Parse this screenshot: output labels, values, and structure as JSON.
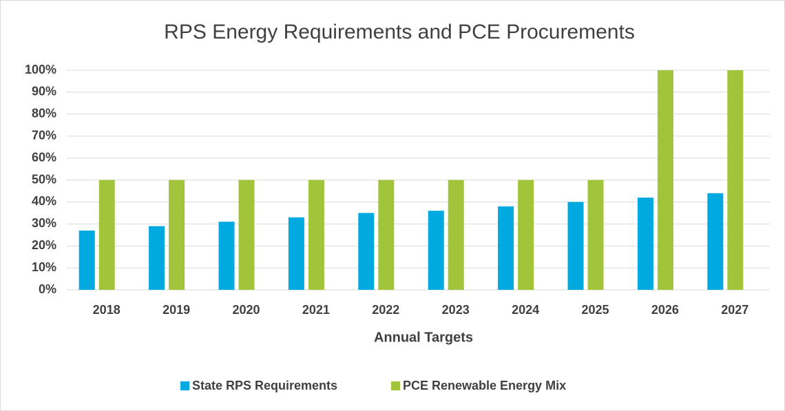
{
  "chart_data": {
    "type": "bar",
    "title": "RPS Energy Requirements and PCE Procurements",
    "x_label": "Annual Targets",
    "categories": [
      "2018",
      "2019",
      "2020",
      "2021",
      "2022",
      "2023",
      "2024",
      "2025",
      "2026",
      "2027"
    ],
    "series": [
      {
        "name": "State RPS Requirements",
        "color": "#00a9e0",
        "values": [
          27,
          29,
          31,
          33,
          35,
          36,
          38,
          40,
          42,
          44
        ]
      },
      {
        "name": "PCE Renewable Energy Mix",
        "color": "#a1c43a",
        "values": [
          50,
          50,
          50,
          50,
          50,
          50,
          50,
          50,
          100,
          100
        ]
      }
    ],
    "ylim": [
      0,
      100
    ],
    "yticks": [
      {
        "value": 0,
        "label": "0%"
      },
      {
        "value": 10,
        "label": "10%"
      },
      {
        "value": 20,
        "label": "20%"
      },
      {
        "value": 30,
        "label": "30%"
      },
      {
        "value": 40,
        "label": "40%"
      },
      {
        "value": 50,
        "label": "50%"
      },
      {
        "value": 60,
        "label": "60%"
      },
      {
        "value": 70,
        "label": "70%"
      },
      {
        "value": 80,
        "label": "80%"
      },
      {
        "value": 90,
        "label": "90%"
      },
      {
        "value": 100,
        "label": "100%"
      }
    ],
    "grid": true,
    "legend": "bottom"
  }
}
